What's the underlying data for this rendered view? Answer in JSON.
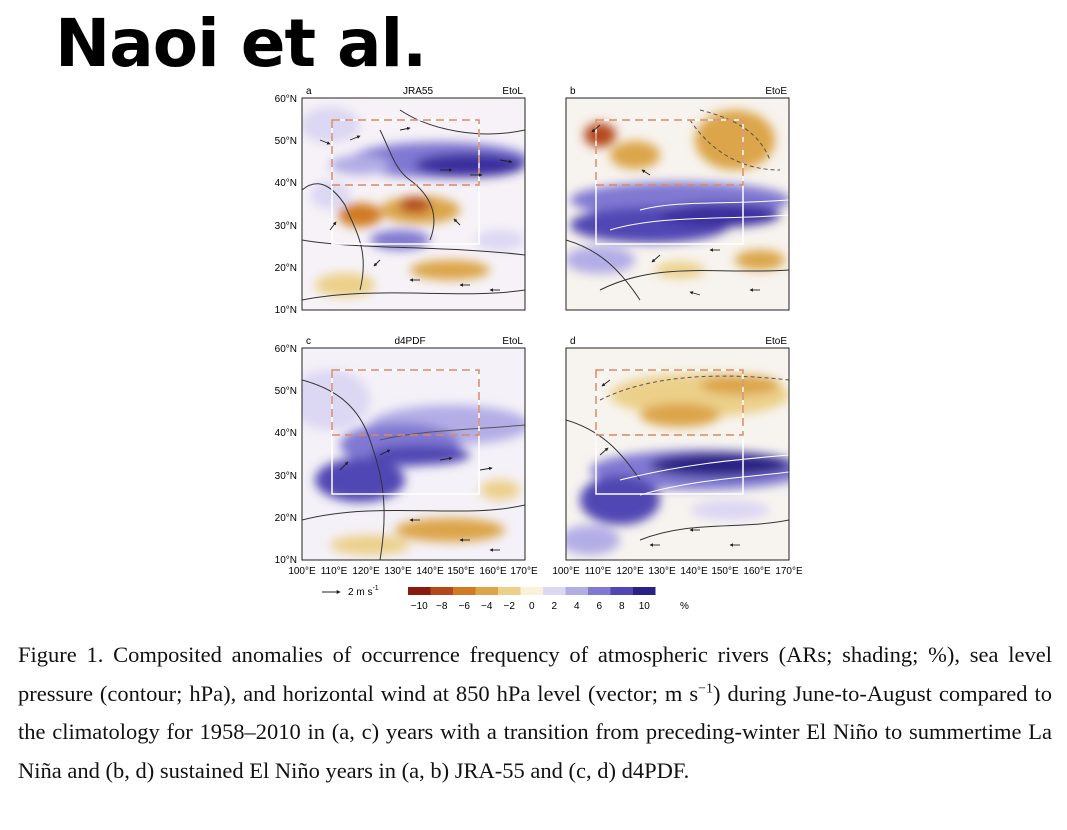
{
  "header": {
    "author_title": "Naoi et al."
  },
  "figure": {
    "panels": [
      {
        "letter": "a",
        "dataset": "JRA55",
        "case": "EtoL"
      },
      {
        "letter": "b",
        "dataset": "",
        "case": "EtoE"
      },
      {
        "letter": "c",
        "dataset": "d4PDF",
        "case": "EtoL"
      },
      {
        "letter": "d",
        "dataset": "",
        "case": "EtoE"
      }
    ],
    "lat_labels": [
      "60°N",
      "50°N",
      "40°N",
      "30°N",
      "20°N",
      "10°N"
    ],
    "lon_labels": [
      "100°E",
      "110°E",
      "120°E",
      "130°E",
      "140°E",
      "150°E",
      "160°E",
      "170°E"
    ],
    "vector_ref": "2 m s",
    "vector_ref_exp": "-1",
    "colorbar": {
      "ticks": [
        "−10",
        "−8",
        "−6",
        "−4",
        "−2",
        "0",
        "2",
        "4",
        "6",
        "8",
        "10"
      ],
      "unit": "%",
      "colors": [
        "#8b1a0e",
        "#b5471c",
        "#d07a24",
        "#dca548",
        "#ecd08a",
        "#faf1d9",
        "#dcd7f3",
        "#b3ade6",
        "#8078d2",
        "#5146b4",
        "#2a2184"
      ]
    }
  },
  "caption": {
    "text_before_unit": "Figure 1. Composited anomalies of occurrence frequency of atmospheric rivers (ARs; shading; %), sea level pressure (contour; hPa), and horizontal wind at 850 hPa level (vector; m s",
    "unit_exp": "−1",
    "text_after_unit": ") during June-to-August compared to the climatology for 1958–2010 in (a, c) years with a transition from preceding-winter El Niño to summertime La Niña and (b, d) sustained El Niño years in (a, b) JRA-55 and (c, d) d4PDF."
  }
}
